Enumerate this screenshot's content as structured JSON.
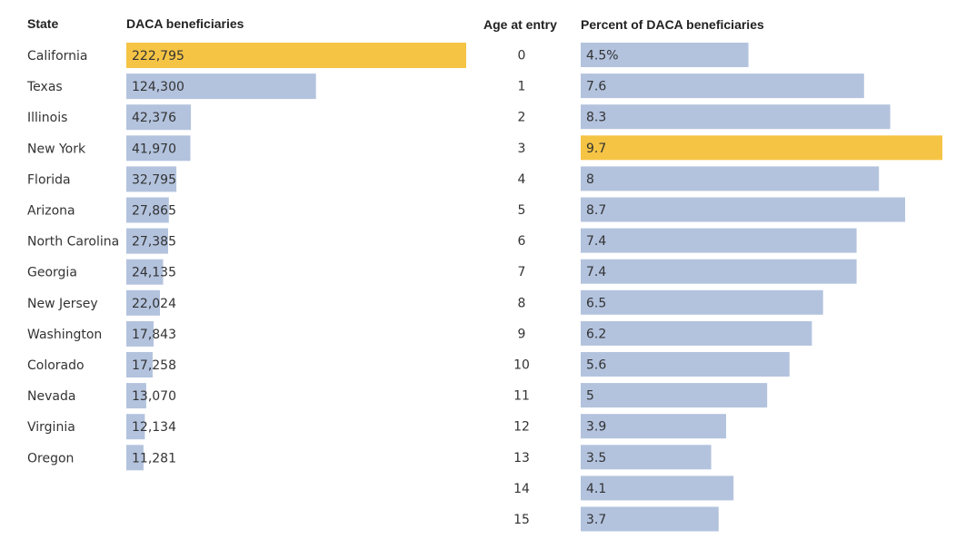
{
  "colors": {
    "bar": "#b3c3de",
    "highlight": "#f5c445"
  },
  "chart_data": [
    {
      "type": "bar",
      "orientation": "horizontal",
      "category_header": "State",
      "value_header": "DACA beneficiaries",
      "categories": [
        "California",
        "Texas",
        "Illinois",
        "New York",
        "Florida",
        "Arizona",
        "North Carolina",
        "Georgia",
        "New Jersey",
        "Washington",
        "Colorado",
        "Nevada",
        "Virginia",
        "Oregon"
      ],
      "values": [
        222795,
        124300,
        42376,
        41970,
        32795,
        27865,
        27385,
        24135,
        22024,
        17843,
        17258,
        13070,
        12134,
        11281
      ],
      "value_labels": [
        "222,795",
        "124,300",
        "42,376",
        "41,970",
        "32,795",
        "27,865",
        "27,385",
        "24,135",
        "22,024",
        "17,843",
        "17,258",
        "13,070",
        "12,134",
        "11,281"
      ],
      "highlight_index": 0,
      "xlim": [
        0,
        222795
      ]
    },
    {
      "type": "bar",
      "orientation": "horizontal",
      "category_header": "Age at entry",
      "value_header": "Percent of DACA beneficiaries",
      "categories": [
        "0",
        "1",
        "2",
        "3",
        "4",
        "5",
        "6",
        "7",
        "8",
        "9",
        "10",
        "11",
        "12",
        "13",
        "14",
        "15"
      ],
      "values": [
        4.5,
        7.6,
        8.3,
        9.7,
        8,
        8.7,
        7.4,
        7.4,
        6.5,
        6.2,
        5.6,
        5,
        3.9,
        3.5,
        4.1,
        3.7
      ],
      "value_labels": [
        "4.5%",
        "7.6",
        "8.3",
        "9.7",
        "8",
        "8.7",
        "7.4",
        "7.4",
        "6.5",
        "6.2",
        "5.6",
        "5",
        "3.9",
        "3.5",
        "4.1",
        "3.7"
      ],
      "highlight_index": 3,
      "xlim": [
        0,
        9.7
      ]
    }
  ]
}
